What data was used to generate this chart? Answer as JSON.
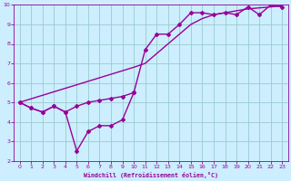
{
  "line1_x": [
    0,
    1,
    2,
    3,
    4,
    5,
    6,
    7,
    8,
    9,
    10
  ],
  "line1_y": [
    5.0,
    4.7,
    4.5,
    4.8,
    4.5,
    2.5,
    3.5,
    3.8,
    3.8,
    4.1,
    5.5
  ],
  "line2_x": [
    0,
    1,
    2,
    3,
    4,
    5,
    6,
    7,
    8,
    9,
    10,
    11,
    12,
    13,
    14,
    15,
    16,
    17,
    18,
    19,
    20,
    21,
    22,
    23
  ],
  "line2_y": [
    5.0,
    4.7,
    4.5,
    4.8,
    4.5,
    4.8,
    5.0,
    5.1,
    5.2,
    5.3,
    5.5,
    7.7,
    8.5,
    8.5,
    9.0,
    9.6,
    9.6,
    9.5,
    9.6,
    9.5,
    9.9,
    9.5,
    10.0,
    9.9
  ],
  "line3_x": [
    0,
    10,
    11,
    12,
    13,
    14,
    15,
    16,
    17,
    18,
    19,
    20,
    21,
    22,
    23
  ],
  "line3_y": [
    5.0,
    6.8,
    7.0,
    7.5,
    8.0,
    8.5,
    9.0,
    9.3,
    9.5,
    9.6,
    9.7,
    9.8,
    9.85,
    9.9,
    9.95
  ],
  "line_color": "#990099",
  "marker": "D",
  "marker_size": 2.0,
  "bg_color": "#cceeff",
  "grid_color": "#99cccc",
  "xlabel": "Windchill (Refroidissement éolien,°C)",
  "xlim": [
    -0.5,
    23.5
  ],
  "ylim": [
    2,
    10
  ],
  "xticks": [
    0,
    1,
    2,
    3,
    4,
    5,
    6,
    7,
    8,
    9,
    10,
    11,
    12,
    13,
    14,
    15,
    16,
    17,
    18,
    19,
    20,
    21,
    22,
    23
  ],
  "yticks": [
    2,
    3,
    4,
    5,
    6,
    7,
    8,
    9,
    10
  ],
  "xlabel_color": "#990099",
  "tick_color": "#990099",
  "axis_color": "#990099",
  "linewidth": 1.0
}
